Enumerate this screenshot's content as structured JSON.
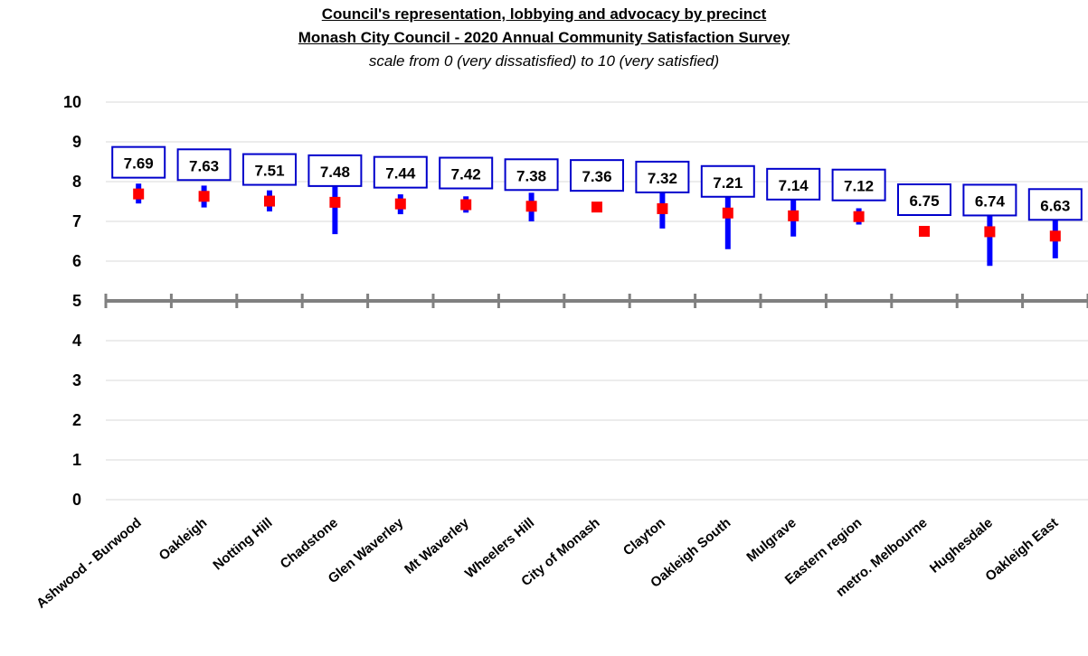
{
  "chart_data": {
    "type": "scatter",
    "title": "Council's representation, lobbying and advocacy by precinct",
    "subtitle": "Monash City Council - 2020 Annual Community Satisfaction Survey",
    "note": "scale from 0 (very dissatisfied) to 10 (very satisfied)",
    "ylim": [
      0,
      10
    ],
    "yticks": [
      "0",
      "1",
      "2",
      "3",
      "4",
      "5",
      "6",
      "7",
      "8",
      "9",
      "10"
    ],
    "reference_line": 5,
    "grid": true,
    "categories": [
      "Ashwood - Burwood",
      "Oakleigh",
      "Notting Hill",
      "Chadstone",
      "Glen Waverley",
      "Mt Waverley",
      "Wheelers Hill",
      "City of Monash",
      "Clayton",
      "Oakleigh South",
      "Mulgrave",
      "Eastern region",
      "metro. Melbourne",
      "Hughesdale",
      "Oakleigh East"
    ],
    "values": [
      7.69,
      7.63,
      7.51,
      7.48,
      7.44,
      7.42,
      7.38,
      7.36,
      7.32,
      7.21,
      7.14,
      7.12,
      6.75,
      6.74,
      6.63
    ],
    "labels": [
      "7.69",
      "7.63",
      "7.51",
      "7.48",
      "7.44",
      "7.42",
      "7.38",
      "7.36",
      "7.32",
      "7.21",
      "7.14",
      "7.12",
      "6.75",
      "6.74",
      "6.63"
    ],
    "ci_low": [
      7.45,
      7.35,
      7.25,
      6.68,
      7.18,
      7.22,
      7.0,
      null,
      6.82,
      6.3,
      6.62,
      6.92,
      null,
      5.88,
      6.07
    ],
    "ci_high": [
      7.95,
      7.9,
      7.78,
      8.25,
      7.68,
      7.63,
      7.72,
      null,
      7.82,
      8.1,
      7.66,
      7.33,
      null,
      7.6,
      7.18
    ],
    "colors": {
      "mean": "#ff0000",
      "ci": "#0000ff",
      "label_border": "#0000cc",
      "grid": "#d9d9d9",
      "reference": "#808080"
    }
  }
}
